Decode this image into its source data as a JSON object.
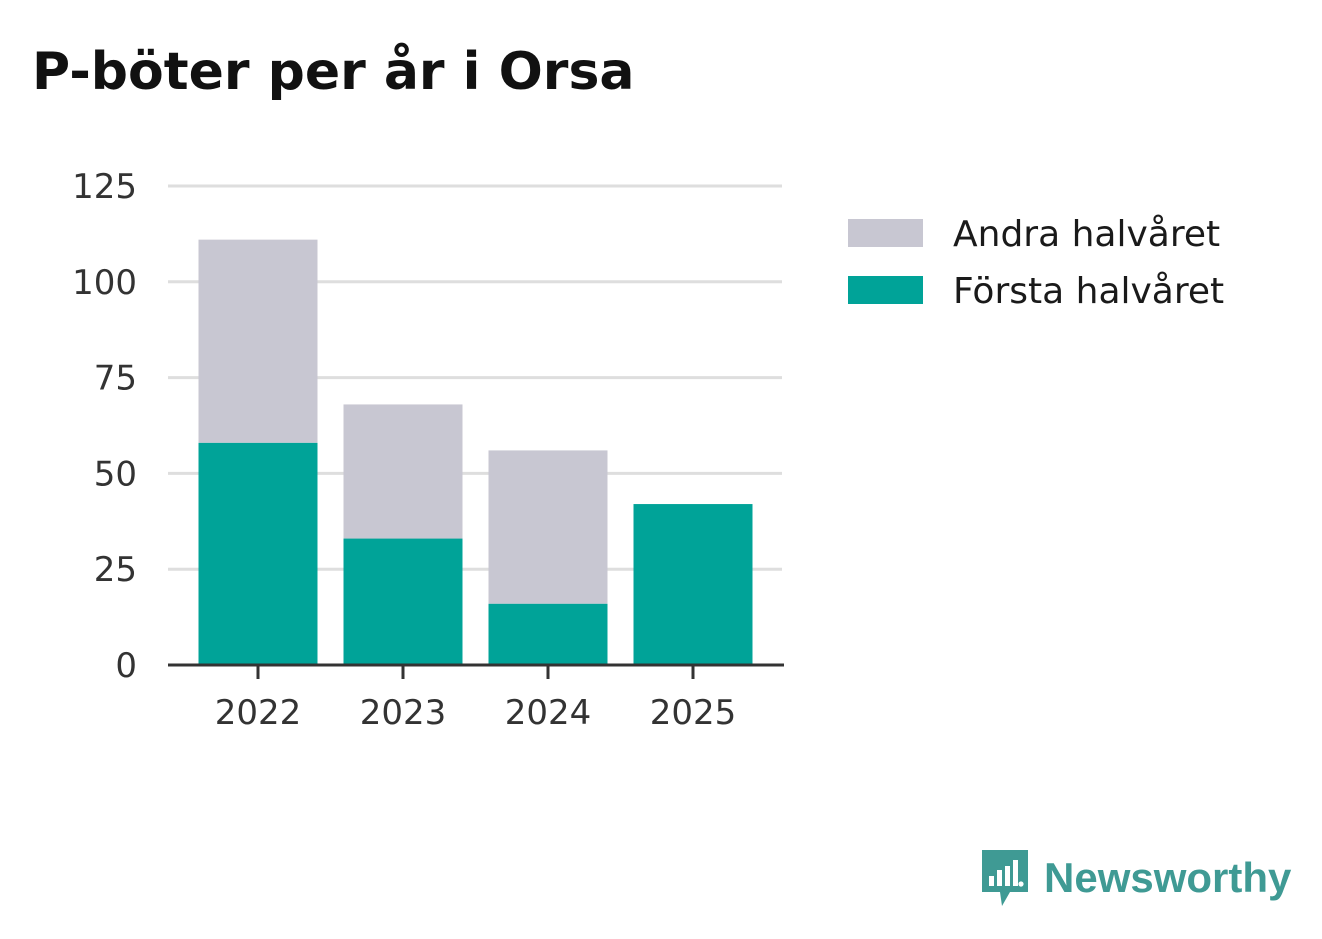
{
  "title": "P-böter per år i Orsa",
  "chart_data": {
    "type": "bar",
    "stacked": true,
    "title": "P-böter per år i Orsa",
    "xlabel": "",
    "ylabel": "",
    "categories": [
      "2022",
      "2023",
      "2024",
      "2025"
    ],
    "series": [
      {
        "name": "Första halvåret",
        "color": "#00a398",
        "values": [
          58,
          33,
          16,
          42
        ]
      },
      {
        "name": "Andra halvåret",
        "color": "#c8c7d2",
        "values": [
          53,
          35,
          40,
          0
        ]
      }
    ],
    "ylim": [
      0,
      125
    ],
    "yticks": [
      0,
      25,
      50,
      75,
      100,
      125
    ],
    "grid": true,
    "legend": {
      "placement": "right",
      "order": [
        "Andra halvåret",
        "Första halvåret"
      ]
    }
  },
  "brand": {
    "name": "Newsworthy",
    "icon": "newsworthy-logo-icon",
    "color": "#3f9a94"
  }
}
